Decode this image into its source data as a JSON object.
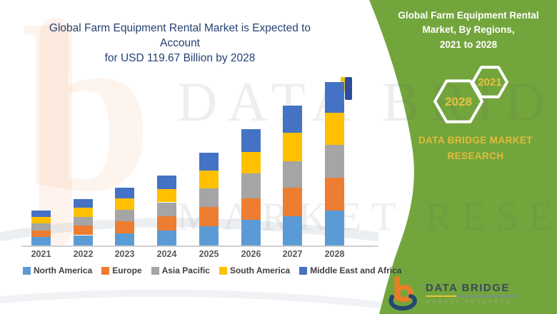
{
  "header": {
    "title_line1": "Global Farm Equipment Rental Market is Expected to Account",
    "title_line2": "for USD 119.67 Billion by 2028"
  },
  "side_panel": {
    "bg_color": "#73A53D",
    "accent_yellow": "#E8C33D",
    "title_line1": "Global Farm Equipment Rental",
    "title_line2": "Market, By Regions,",
    "title_line3": "2021 to 2028",
    "hex_year_start": "2021",
    "hex_year_end": "2028",
    "brand_line1": "DATA BRIDGE MARKET",
    "brand_line2": "RESEARCH"
  },
  "footer_logo": {
    "name": "DATA BRIDGE",
    "subtitle": "MARKET RESEARCH"
  },
  "watermark": {
    "line1": "DATA BRIDGE",
    "line2": "MARKET RESEARCH",
    "letter": "b"
  },
  "chart_data": {
    "type": "bar",
    "stacked": true,
    "title": "Global Farm Equipment Rental Market is Expected to Account for USD 119.67 Billion by 2028",
    "unit": "USD Billion",
    "categories": [
      "2021",
      "2022",
      "2023",
      "2024",
      "2025",
      "2026",
      "2027",
      "2028"
    ],
    "series": [
      {
        "name": "North America",
        "color": "#5B9BD5",
        "values": [
          6.2,
          7.6,
          9.0,
          11.0,
          14.2,
          19.0,
          21.5,
          25.7
        ]
      },
      {
        "name": "Europe",
        "color": "#ED7D31",
        "values": [
          4.7,
          6.9,
          8.6,
          10.4,
          14.0,
          15.7,
          20.9,
          24.0
        ]
      },
      {
        "name": "Asia Pacific",
        "color": "#A5A5A5",
        "values": [
          5.2,
          6.6,
          8.5,
          10.2,
          13.5,
          18.0,
          19.5,
          23.9
        ]
      },
      {
        "name": "South America",
        "color": "#FFC000",
        "values": [
          4.7,
          6.5,
          8.2,
          9.9,
          13.2,
          15.7,
          20.5,
          23.8
        ]
      },
      {
        "name": "Middle East and Africa",
        "color": "#4472C4",
        "values": [
          4.8,
          6.4,
          8.0,
          9.7,
          13.0,
          16.8,
          20.0,
          22.3
        ]
      }
    ],
    "totals": [
      25.6,
      34.0,
      42.3,
      51.2,
      67.9,
      85.2,
      102.4,
      119.67
    ],
    "ylim": [
      0,
      125
    ],
    "grid": false,
    "legend_position": "bottom",
    "value_axis_hidden": true
  }
}
